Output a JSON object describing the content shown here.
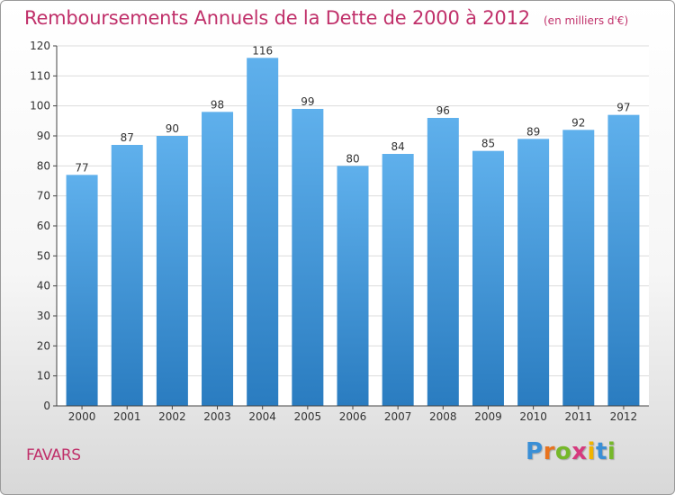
{
  "title": "Remboursements Annuels de la Dette de 2000 à 2012",
  "unit_note": "(en milliers d'€)",
  "commune": "FAVARS",
  "logo": {
    "text": "Proxiti",
    "letters": [
      {
        "char": "P",
        "color": "#3a8fd6"
      },
      {
        "char": "r",
        "color": "#e8731e"
      },
      {
        "char": "o",
        "color": "#76b82a"
      },
      {
        "char": "x",
        "color": "#d63a7e"
      },
      {
        "char": "i",
        "color": "#f0b400"
      },
      {
        "char": "t",
        "color": "#3a8fd6"
      },
      {
        "char": "i",
        "color": "#76b82a"
      }
    ]
  },
  "colors": {
    "title": "#c0306a",
    "bar_top": "#5fb0ec",
    "bar_bottom": "#2a7cc0",
    "grid": "#dcdcdc",
    "axis": "#444444",
    "label": "#333333"
  },
  "chart_data": {
    "type": "bar",
    "title": "Remboursements Annuels de la Dette de 2000 à 2012",
    "categories": [
      "2000",
      "2001",
      "2002",
      "2003",
      "2004",
      "2005",
      "2006",
      "2007",
      "2008",
      "2009",
      "2010",
      "2011",
      "2012"
    ],
    "values": [
      77,
      87,
      90,
      98,
      116,
      99,
      80,
      84,
      96,
      85,
      89,
      92,
      97
    ],
    "ylim": [
      0,
      120
    ],
    "yticks": [
      0,
      10,
      20,
      30,
      40,
      50,
      60,
      70,
      80,
      90,
      100,
      110,
      120
    ],
    "grid": true,
    "data_labels": true
  }
}
